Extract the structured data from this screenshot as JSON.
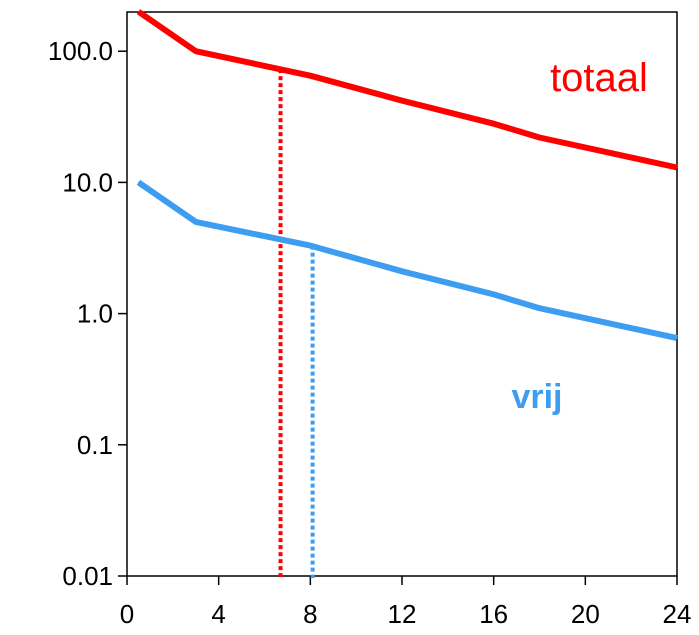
{
  "chart_data": {
    "type": "line",
    "title": "",
    "xlabel": "",
    "ylabel": "",
    "y_scale": "log",
    "xlim": [
      0,
      24
    ],
    "ylim": [
      0.01,
      200
    ],
    "grid": false,
    "legend": "none",
    "x_ticks": [
      0,
      4,
      8,
      12,
      16,
      20,
      24
    ],
    "x_tick_labels": [
      "0",
      "4",
      "8",
      "12",
      "16",
      "20",
      "24"
    ],
    "y_ticks": [
      0.01,
      0.1,
      1,
      10,
      100
    ],
    "y_tick_labels": [
      "0.01",
      "0.1",
      "1.0",
      "10.0",
      "100.0"
    ],
    "series": [
      {
        "name": "totaal",
        "color": "#ff0000",
        "points": [
          [
            0.5,
            200
          ],
          [
            3,
            100
          ],
          [
            8,
            65
          ],
          [
            12,
            42
          ],
          [
            16,
            28
          ],
          [
            18,
            22
          ],
          [
            24,
            13
          ]
        ],
        "marker_x": 6.7,
        "marker_y": 73
      },
      {
        "name": "vrij",
        "color": "#3d9df0",
        "points": [
          [
            0.5,
            10
          ],
          [
            3,
            5
          ],
          [
            8,
            3.3
          ],
          [
            12,
            2.1
          ],
          [
            16,
            1.4
          ],
          [
            18,
            1.1
          ],
          [
            24,
            0.65
          ]
        ],
        "marker_x": 8.1,
        "marker_y": 3.3
      }
    ]
  }
}
